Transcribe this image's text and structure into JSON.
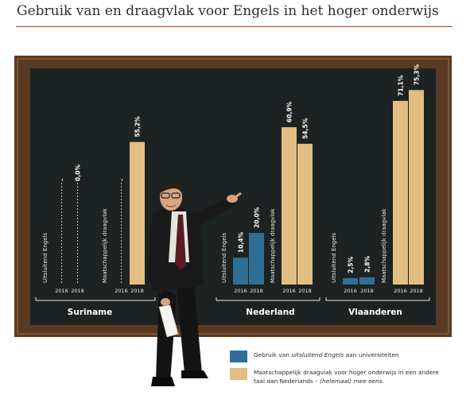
{
  "title": "Gebruik van en draagvlak voor Engels in het hoger onderwijs",
  "colors": {
    "title_rule": "#c43a2c",
    "frame": "#5a3a22",
    "frame_light": "#7b5535",
    "board": "#1d2222",
    "series_english": "#2f6f96",
    "series_support": "#e2be83",
    "chalk": "#e8e8e2"
  },
  "chart_data": {
    "type": "bar",
    "groups": [
      {
        "name": "Suriname",
        "series": [
          {
            "label": "Uitsluitend Engels",
            "values": [
              {
                "year": "2016",
                "value": null,
                "label": "-"
              },
              {
                "year": "2018",
                "value": 0.0,
                "label": "0,0%"
              }
            ]
          },
          {
            "label": "Maatschappelijk draagvlak",
            "values": [
              {
                "year": "2016",
                "value": null,
                "label": "-"
              },
              {
                "year": "2018",
                "value": 55.2,
                "label": "55,2%"
              }
            ]
          }
        ]
      },
      {
        "name": "Nederland",
        "series": [
          {
            "label": "Uitsluitend Engels",
            "values": [
              {
                "year": "2016",
                "value": 10.4,
                "label": "10,4%"
              },
              {
                "year": "2018",
                "value": 20.0,
                "label": "20,0%"
              }
            ]
          },
          {
            "label": "Maatschappelijk draagvlak",
            "values": [
              {
                "year": "2016",
                "value": 60.9,
                "label": "60,9%"
              },
              {
                "year": "2018",
                "value": 54.5,
                "label": "54,5%"
              }
            ]
          }
        ]
      },
      {
        "name": "Vlaanderen",
        "series": [
          {
            "label": "Uitsluitend Engels",
            "values": [
              {
                "year": "2016",
                "value": 2.5,
                "label": "2,5%"
              },
              {
                "year": "2018",
                "value": 2.8,
                "label": "2,8%"
              }
            ]
          },
          {
            "label": "Maatschappelijk draagvlak",
            "values": [
              {
                "year": "2016",
                "value": 71.1,
                "label": "71,1%"
              },
              {
                "year": "2018",
                "value": 75.3,
                "label": "75,3%"
              }
            ]
          }
        ]
      }
    ],
    "ylim": [
      0,
      80
    ]
  },
  "legend": {
    "items": [
      {
        "pre": "Gebruik van ",
        "em": "uitsluitend Engels",
        "post": " aan universiteiten",
        "em2": "",
        "post2": ""
      },
      {
        "pre": "Maatschappelijk draagvlak voor hoger onderwijs in een andere taal dan Nederlands – ",
        "em": "(helemaal) mee eens.",
        "post": "",
        "em2": "",
        "post2": ""
      }
    ]
  },
  "icons": [
    "teacher-illustration",
    "chalkboard"
  ]
}
